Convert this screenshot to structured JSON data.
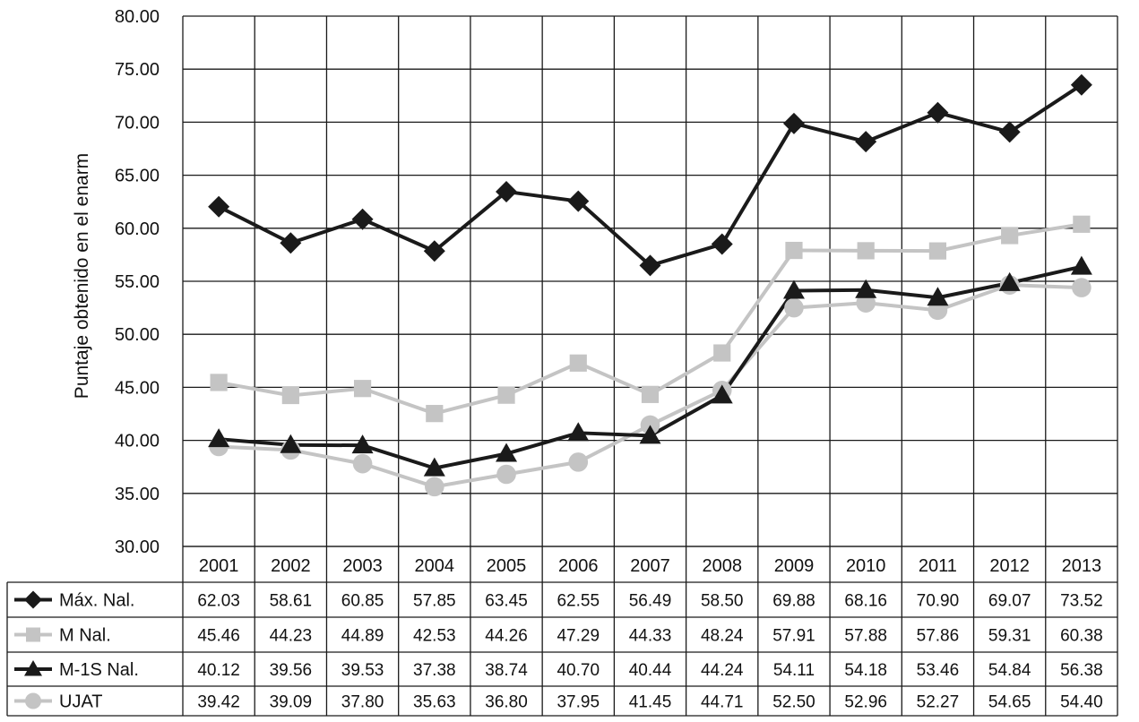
{
  "chart_data": {
    "type": "line",
    "ylabel": "Puntaje obtenido en el enarm",
    "ylim": [
      30,
      80
    ],
    "yticks": [
      "30.00",
      "35.00",
      "40.00",
      "45.00",
      "50.00",
      "55.00",
      "60.00",
      "65.00",
      "70.00",
      "75.00",
      "80.00"
    ],
    "categories": [
      "2001",
      "2002",
      "2003",
      "2004",
      "2005",
      "2006",
      "2007",
      "2008",
      "2009",
      "2010",
      "2011",
      "2012",
      "2013"
    ],
    "grid": true,
    "legend": "data-table-below",
    "series": [
      {
        "name": "Máx. Nal.",
        "color": "#1a1a1a",
        "marker": "diamond",
        "values": [
          62.03,
          58.61,
          60.85,
          57.85,
          63.45,
          62.55,
          56.49,
          58.5,
          69.88,
          68.16,
          70.9,
          69.07,
          73.52
        ],
        "labels": [
          "62.03",
          "58.61",
          "60.85",
          "57.85",
          "63.45",
          "62.55",
          "56.49",
          "58.50",
          "69.88",
          "68.16",
          "70.90",
          "69.07",
          "73.52"
        ]
      },
      {
        "name": "M Nal.",
        "color": "#c4c4c4",
        "marker": "square",
        "values": [
          45.46,
          44.23,
          44.89,
          42.53,
          44.26,
          47.29,
          44.33,
          48.24,
          57.91,
          57.88,
          57.86,
          59.31,
          60.38
        ],
        "labels": [
          "45.46",
          "44.23",
          "44.89",
          "42.53",
          "44.26",
          "47.29",
          "44.33",
          "48.24",
          "57.91",
          "57.88",
          "57.86",
          "59.31",
          "60.38"
        ]
      },
      {
        "name": "M-1S Nal.",
        "color": "#1a1a1a",
        "marker": "triangle",
        "values": [
          40.12,
          39.56,
          39.53,
          37.38,
          38.74,
          40.7,
          40.44,
          44.24,
          54.11,
          54.18,
          53.46,
          54.84,
          56.38
        ],
        "labels": [
          "40.12",
          "39.56",
          "39.53",
          "37.38",
          "38.74",
          "40.70",
          "40.44",
          "44.24",
          "54.11",
          "54.18",
          "53.46",
          "54.84",
          "56.38"
        ]
      },
      {
        "name": "UJAT",
        "color": "#c4c4c4",
        "marker": "circle",
        "values": [
          39.42,
          39.09,
          37.8,
          35.63,
          36.8,
          37.95,
          41.45,
          44.71,
          52.5,
          52.96,
          52.27,
          54.65,
          54.4
        ],
        "labels": [
          "39.42",
          "39.09",
          "37.80",
          "35.63",
          "36.80",
          "37.95",
          "41.45",
          "44.71",
          "52.50",
          "52.96",
          "52.27",
          "54.65",
          "54.40"
        ]
      }
    ]
  }
}
